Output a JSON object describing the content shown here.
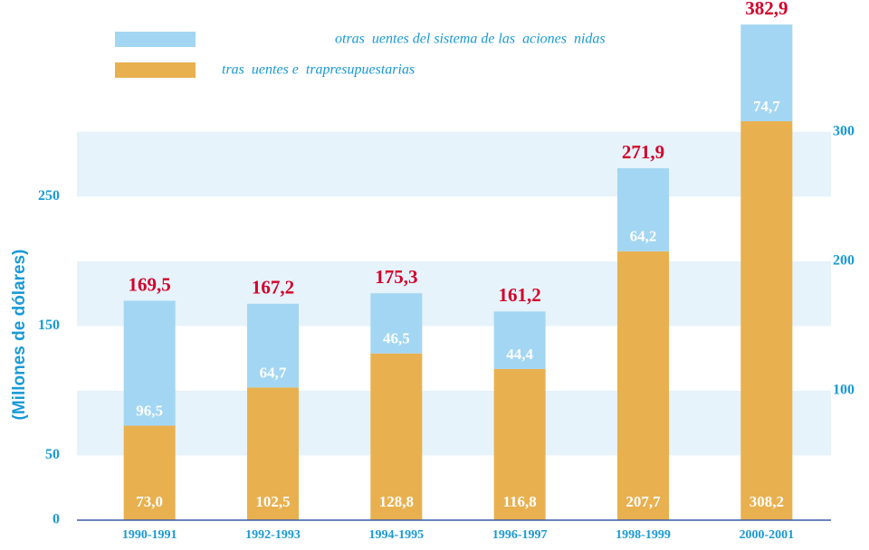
{
  "chart_data": {
    "type": "stacked_bar",
    "ylabel": "(Millones de dólares)",
    "categories": [
      "1990-1991",
      "1992-1993",
      "1994-1995",
      "1996-1997",
      "1998-1999",
      "2000-2001"
    ],
    "series": [
      {
        "name": "tras  uentes e  trapresupuestarias",
        "color": "#e8b04f",
        "values": [
          73.0,
          102.5,
          128.8,
          116.8,
          207.7,
          308.2
        ],
        "value_labels": [
          "73,0",
          "102,5",
          "128,8",
          "116,8",
          "207,7",
          "308,2"
        ]
      },
      {
        "name": "otras  uentes del sistema de las  aciones  nidas",
        "color": "#a3d6f2",
        "values": [
          96.5,
          64.7,
          46.5,
          44.4,
          64.2,
          74.7
        ],
        "value_labels": [
          "96,5",
          "64,7",
          "46,5",
          "44,4",
          "64,2",
          "74,7"
        ]
      }
    ],
    "totals": [
      169.5,
      167.2,
      175.3,
      161.2,
      271.9,
      382.9
    ],
    "total_labels": [
      "169,5",
      "167,2",
      "175,3",
      "161,2",
      "271,9",
      "382,9"
    ],
    "ylim": [
      0,
      390
    ],
    "yticks": [
      0,
      50,
      150,
      250
    ],
    "y2lim": [
      0,
      390
    ],
    "y2ticks": [
      100,
      200,
      300
    ],
    "grid": true
  }
}
